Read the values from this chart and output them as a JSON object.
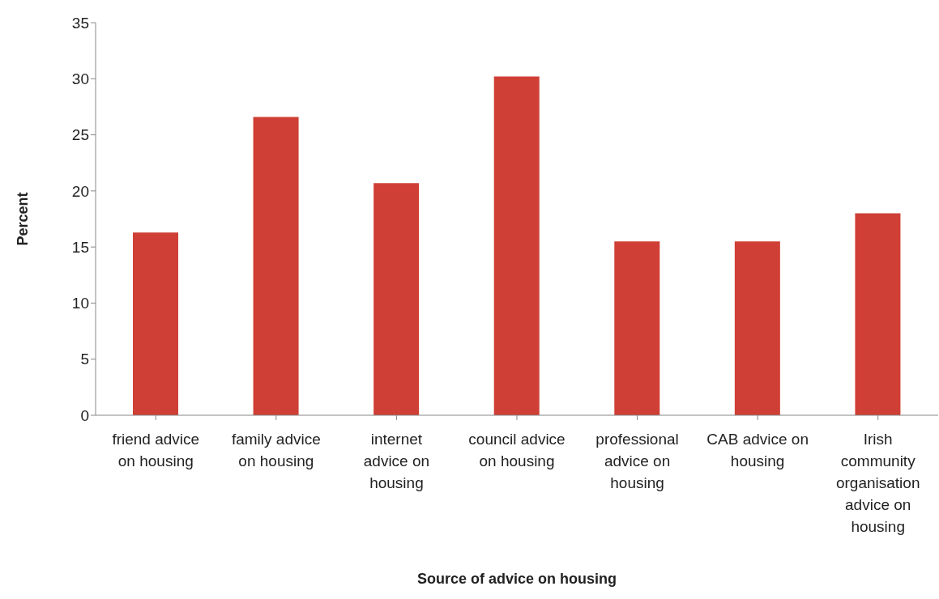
{
  "chart_data": {
    "type": "bar",
    "xlabel": "Source of advice on housing",
    "ylabel": "Percent",
    "categories": [
      "friend advice on housing",
      "family advice on housing",
      "internet advice on housing",
      "council advice on housing",
      "professional advice on housing",
      "CAB advice on housing",
      "Irish community organisation advice on housing"
    ],
    "values": [
      16.3,
      26.6,
      20.7,
      30.2,
      15.5,
      15.5,
      18.0
    ],
    "color": "#cf3f35",
    "ylim": [
      0,
      35
    ],
    "yticks": [
      0,
      5,
      10,
      15,
      20,
      25,
      30,
      35
    ],
    "grid": false,
    "legend": false
  }
}
